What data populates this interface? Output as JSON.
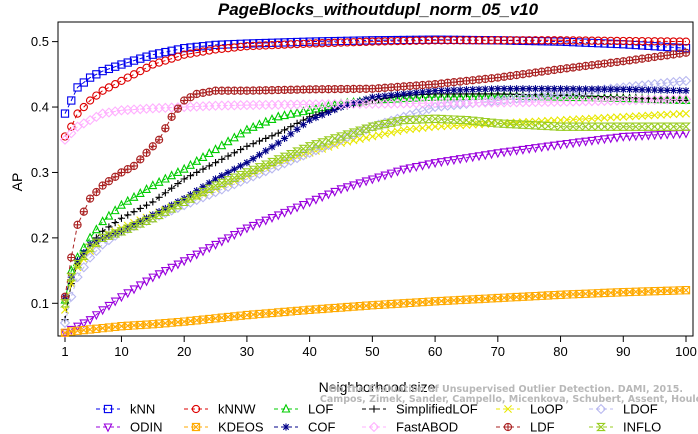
{
  "chart_data": {
    "type": "line",
    "title": "PageBlocks_withoutdupl_norm_05_v10",
    "xlabel": "Neighborhood size",
    "ylabel": "AP",
    "xlim": [
      1,
      100
    ],
    "ylim": [
      0.05,
      0.53
    ],
    "xticks": [
      1,
      10,
      20,
      30,
      40,
      50,
      60,
      70,
      80,
      90,
      100
    ],
    "yticks": [
      0.1,
      0.2,
      0.3,
      0.4,
      0.5
    ],
    "grid": false,
    "legend_position": "bottom",
    "attribution": [
      "Campos, Zimek, Sander, Campello, Micenkova, Schubert, Assent, Houle",
      "On the Evaluation of Unsupervised Outlier Detection. DAMI, 2015."
    ],
    "series": [
      {
        "name": "kNN",
        "color": "#0000ee",
        "marker": "square",
        "points": [
          [
            1,
            0.39
          ],
          [
            2,
            0.41
          ],
          [
            3,
            0.43
          ],
          [
            5,
            0.445
          ],
          [
            7,
            0.455
          ],
          [
            10,
            0.465
          ],
          [
            15,
            0.48
          ],
          [
            20,
            0.49
          ],
          [
            25,
            0.495
          ],
          [
            30,
            0.497
          ],
          [
            40,
            0.5
          ],
          [
            50,
            0.502
          ],
          [
            60,
            0.503
          ],
          [
            70,
            0.502
          ],
          [
            80,
            0.5
          ],
          [
            90,
            0.496
          ],
          [
            100,
            0.49
          ]
        ]
      },
      {
        "name": "kNNW",
        "color": "#dd0000",
        "marker": "circle",
        "points": [
          [
            1,
            0.355
          ],
          [
            2,
            0.37
          ],
          [
            3,
            0.39
          ],
          [
            5,
            0.41
          ],
          [
            7,
            0.425
          ],
          [
            10,
            0.44
          ],
          [
            15,
            0.465
          ],
          [
            20,
            0.48
          ],
          [
            25,
            0.488
          ],
          [
            30,
            0.493
          ],
          [
            40,
            0.497
          ],
          [
            50,
            0.5
          ],
          [
            60,
            0.502
          ],
          [
            70,
            0.502
          ],
          [
            80,
            0.502
          ],
          [
            90,
            0.501
          ],
          [
            100,
            0.5
          ]
        ]
      },
      {
        "name": "LOF",
        "color": "#00cc00",
        "marker": "triangle-up",
        "points": [
          [
            1,
            0.105
          ],
          [
            2,
            0.15
          ],
          [
            3,
            0.17
          ],
          [
            5,
            0.2
          ],
          [
            7,
            0.225
          ],
          [
            10,
            0.25
          ],
          [
            15,
            0.28
          ],
          [
            20,
            0.305
          ],
          [
            25,
            0.335
          ],
          [
            30,
            0.365
          ],
          [
            35,
            0.385
          ],
          [
            40,
            0.395
          ],
          [
            45,
            0.405
          ],
          [
            50,
            0.41
          ],
          [
            55,
            0.413
          ],
          [
            60,
            0.415
          ],
          [
            70,
            0.417
          ],
          [
            80,
            0.415
          ],
          [
            90,
            0.413
          ],
          [
            100,
            0.41
          ]
        ]
      },
      {
        "name": "SimplifiedLOF",
        "color": "#000000",
        "marker": "plus",
        "points": [
          [
            1,
            0.075
          ],
          [
            2,
            0.13
          ],
          [
            3,
            0.16
          ],
          [
            5,
            0.19
          ],
          [
            7,
            0.21
          ],
          [
            10,
            0.23
          ],
          [
            15,
            0.255
          ],
          [
            20,
            0.29
          ],
          [
            25,
            0.315
          ],
          [
            30,
            0.34
          ],
          [
            35,
            0.36
          ],
          [
            40,
            0.385
          ],
          [
            45,
            0.4
          ],
          [
            50,
            0.41
          ],
          [
            55,
            0.418
          ],
          [
            60,
            0.42
          ],
          [
            70,
            0.42
          ],
          [
            80,
            0.418
          ],
          [
            90,
            0.415
          ],
          [
            100,
            0.41
          ]
        ]
      },
      {
        "name": "LoOP",
        "color": "#e8e800",
        "marker": "x",
        "points": [
          [
            1,
            0.09
          ],
          [
            2,
            0.13
          ],
          [
            3,
            0.155
          ],
          [
            5,
            0.18
          ],
          [
            7,
            0.2
          ],
          [
            10,
            0.215
          ],
          [
            15,
            0.235
          ],
          [
            20,
            0.255
          ],
          [
            25,
            0.275
          ],
          [
            30,
            0.295
          ],
          [
            35,
            0.315
          ],
          [
            40,
            0.33
          ],
          [
            45,
            0.345
          ],
          [
            50,
            0.355
          ],
          [
            55,
            0.365
          ],
          [
            60,
            0.37
          ],
          [
            70,
            0.375
          ],
          [
            80,
            0.38
          ],
          [
            90,
            0.385
          ],
          [
            100,
            0.39
          ]
        ]
      },
      {
        "name": "LDOF",
        "color": "#b8b8f0",
        "marker": "diamond",
        "points": [
          [
            1,
            0.07
          ],
          [
            2,
            0.11
          ],
          [
            3,
            0.14
          ],
          [
            5,
            0.17
          ],
          [
            7,
            0.19
          ],
          [
            10,
            0.21
          ],
          [
            15,
            0.23
          ],
          [
            20,
            0.25
          ],
          [
            25,
            0.27
          ],
          [
            30,
            0.29
          ],
          [
            40,
            0.33
          ],
          [
            50,
            0.37
          ],
          [
            60,
            0.4
          ],
          [
            70,
            0.41
          ],
          [
            80,
            0.42
          ],
          [
            90,
            0.43
          ],
          [
            100,
            0.44
          ]
        ]
      },
      {
        "name": "ODIN",
        "color": "#9900dd",
        "marker": "triangle-down",
        "points": [
          [
            1,
            0.055
          ],
          [
            2,
            0.06
          ],
          [
            3,
            0.065
          ],
          [
            5,
            0.075
          ],
          [
            7,
            0.09
          ],
          [
            10,
            0.11
          ],
          [
            15,
            0.14
          ],
          [
            20,
            0.165
          ],
          [
            25,
            0.19
          ],
          [
            30,
            0.215
          ],
          [
            35,
            0.235
          ],
          [
            40,
            0.255
          ],
          [
            45,
            0.275
          ],
          [
            50,
            0.29
          ],
          [
            55,
            0.305
          ],
          [
            60,
            0.315
          ],
          [
            70,
            0.33
          ],
          [
            80,
            0.343
          ],
          [
            90,
            0.355
          ],
          [
            100,
            0.36
          ]
        ]
      },
      {
        "name": "KDEOS",
        "color": "#ffaa00",
        "marker": "square-x",
        "points": [
          [
            1,
            0.055
          ],
          [
            2,
            0.057
          ],
          [
            3,
            0.058
          ],
          [
            5,
            0.06
          ],
          [
            10,
            0.065
          ],
          [
            15,
            0.068
          ],
          [
            20,
            0.072
          ],
          [
            25,
            0.077
          ],
          [
            30,
            0.082
          ],
          [
            40,
            0.09
          ],
          [
            50,
            0.097
          ],
          [
            60,
            0.103
          ],
          [
            70,
            0.108
          ],
          [
            80,
            0.113
          ],
          [
            90,
            0.117
          ],
          [
            100,
            0.12
          ]
        ]
      },
      {
        "name": "COF",
        "color": "#000088",
        "marker": "asterisk",
        "points": [
          [
            1,
            0.11
          ],
          [
            2,
            0.14
          ],
          [
            3,
            0.165
          ],
          [
            5,
            0.19
          ],
          [
            7,
            0.2
          ],
          [
            10,
            0.21
          ],
          [
            15,
            0.235
          ],
          [
            20,
            0.26
          ],
          [
            25,
            0.29
          ],
          [
            30,
            0.315
          ],
          [
            35,
            0.345
          ],
          [
            40,
            0.38
          ],
          [
            45,
            0.4
          ],
          [
            50,
            0.415
          ],
          [
            55,
            0.42
          ],
          [
            60,
            0.425
          ],
          [
            70,
            0.428
          ],
          [
            80,
            0.428
          ],
          [
            90,
            0.427
          ],
          [
            100,
            0.425
          ]
        ]
      },
      {
        "name": "FastABOD",
        "color": "#ffb0ff",
        "marker": "diamond",
        "points": [
          [
            1,
            0.35
          ],
          [
            2,
            0.36
          ],
          [
            3,
            0.37
          ],
          [
            5,
            0.38
          ],
          [
            7,
            0.39
          ],
          [
            10,
            0.395
          ],
          [
            15,
            0.398
          ],
          [
            20,
            0.4
          ],
          [
            25,
            0.402
          ],
          [
            30,
            0.403
          ],
          [
            40,
            0.404
          ],
          [
            50,
            0.405
          ],
          [
            60,
            0.406
          ],
          [
            70,
            0.407
          ],
          [
            80,
            0.408
          ],
          [
            90,
            0.41
          ],
          [
            100,
            0.412
          ]
        ]
      },
      {
        "name": "LDF",
        "color": "#aa2222",
        "marker": "circle-plus",
        "points": [
          [
            1,
            0.11
          ],
          [
            2,
            0.17
          ],
          [
            3,
            0.22
          ],
          [
            5,
            0.26
          ],
          [
            7,
            0.28
          ],
          [
            10,
            0.3
          ],
          [
            12,
            0.31
          ],
          [
            14,
            0.33
          ],
          [
            16,
            0.35
          ],
          [
            18,
            0.385
          ],
          [
            20,
            0.41
          ],
          [
            22,
            0.42
          ],
          [
            25,
            0.425
          ],
          [
            30,
            0.425
          ],
          [
            40,
            0.427
          ],
          [
            50,
            0.428
          ],
          [
            60,
            0.435
          ],
          [
            70,
            0.445
          ],
          [
            80,
            0.458
          ],
          [
            90,
            0.47
          ],
          [
            100,
            0.483
          ]
        ]
      },
      {
        "name": "INFLO",
        "color": "#99cc22",
        "marker": "hourglass",
        "points": [
          [
            1,
            0.1
          ],
          [
            2,
            0.14
          ],
          [
            3,
            0.16
          ],
          [
            5,
            0.185
          ],
          [
            7,
            0.2
          ],
          [
            10,
            0.21
          ],
          [
            15,
            0.23
          ],
          [
            20,
            0.255
          ],
          [
            25,
            0.28
          ],
          [
            30,
            0.3
          ],
          [
            35,
            0.32
          ],
          [
            40,
            0.34
          ],
          [
            45,
            0.355
          ],
          [
            50,
            0.37
          ],
          [
            55,
            0.38
          ],
          [
            60,
            0.382
          ],
          [
            65,
            0.38
          ],
          [
            70,
            0.375
          ],
          [
            80,
            0.37
          ],
          [
            90,
            0.37
          ],
          [
            100,
            0.37
          ]
        ]
      }
    ]
  }
}
